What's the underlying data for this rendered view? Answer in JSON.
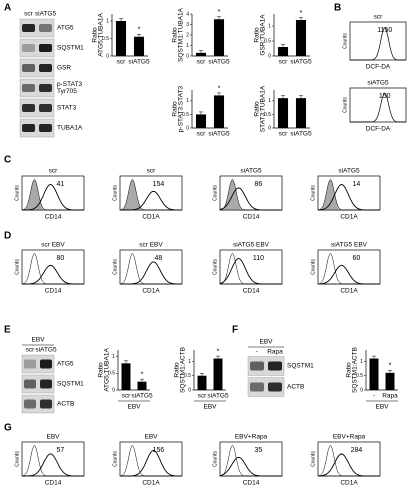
{
  "letters": [
    "A",
    "B",
    "C",
    "D",
    "E",
    "F",
    "G"
  ],
  "blots": [
    {
      "lanes": [
        "scr",
        "siATG5"
      ],
      "rows": [
        "ATG5",
        "SQSTM1",
        "GSR",
        [
          "p-STAT3",
          "Tyr705"
        ],
        "STAT3",
        "TUBA1A"
      ]
    },
    {
      "header": "EBV",
      "lanes": [
        "scr",
        "siATG5"
      ],
      "rows": [
        "ATG5",
        "SQSTM1",
        "ACTB"
      ]
    },
    {
      "header": "EBV",
      "lanes": [
        "-",
        "Rapa"
      ],
      "rows": [
        "SQSTM1",
        "ACTB"
      ]
    }
  ],
  "chart_data": [
    {
      "type": "bar",
      "ylabel": [
        "Ratio",
        "ATG5:TUBA1A"
      ],
      "categories": [
        "scr",
        "siATG5"
      ],
      "values": [
        1.0,
        0.55
      ],
      "color": "#000000",
      "ylim": [
        0,
        1.2
      ],
      "yticks": [
        0,
        0.5,
        1
      ],
      "annotation": "*"
    },
    {
      "type": "bar",
      "ylabel": [
        "Ratio",
        "SQSTM1:TUBA1A"
      ],
      "categories": [
        "scr",
        "siATG5"
      ],
      "values": [
        0.3,
        3.5
      ],
      "color": "#000000",
      "ylim": [
        0,
        4
      ],
      "yticks": [
        0,
        1,
        2,
        3,
        4
      ],
      "annotation": "*"
    },
    {
      "type": "bar",
      "ylabel": [
        "Ratio",
        "GSR:TUBA1A"
      ],
      "categories": [
        "scr",
        "siATG5"
      ],
      "values": [
        0.3,
        1.2
      ],
      "color": "#000000",
      "ylim": [
        0,
        1.4
      ],
      "yticks": [
        0,
        0.5,
        1
      ],
      "annotation": "*"
    },
    {
      "type": "bar",
      "ylabel": [
        "Ratio",
        "p-STAT3:STAT3"
      ],
      "categories": [
        "scr",
        "siATG5"
      ],
      "values": [
        0.5,
        1.2
      ],
      "color": "#000000",
      "ylim": [
        0,
        1.4
      ],
      "yticks": [
        0,
        0.5,
        1
      ],
      "annotation": "*"
    },
    {
      "type": "bar",
      "ylabel": [
        "Ratio",
        "STAT3:TUBA1A"
      ],
      "categories": [
        "scr",
        "siATG5"
      ],
      "values": [
        1.1,
        1.1
      ],
      "color": "#000000",
      "ylim": [
        0,
        1.4
      ],
      "yticks": [
        0,
        0.5,
        1
      ]
    },
    {
      "type": "bar",
      "ylabel": [
        "Ratio",
        "ATG5:TUBA1A"
      ],
      "categories": [
        "scr",
        "siATG5"
      ],
      "values": [
        0.8,
        0.25
      ],
      "color": "#000000",
      "ylim": [
        0,
        1.2
      ],
      "yticks": [
        0,
        0.5,
        1
      ],
      "annotation": "*",
      "group_label": "EBV"
    },
    {
      "type": "bar",
      "ylabel": [
        "Ratio",
        "SQSTM1:ACTB"
      ],
      "categories": [
        "scr",
        "siATG5"
      ],
      "values": [
        0.5,
        1.1
      ],
      "color": "#000000",
      "ylim": [
        0,
        1.4
      ],
      "yticks": [
        0,
        0.5,
        1
      ],
      "annotation": "*",
      "group_label": "EBV"
    },
    {
      "type": "bar",
      "ylabel": [
        "Ratio",
        "SQSTM1:ACTB"
      ],
      "categories": [
        "-",
        "Rapa"
      ],
      "values": [
        1.1,
        0.6
      ],
      "color": "#000000",
      "ylim": [
        0,
        1.4
      ],
      "yticks": [
        0,
        0.5,
        1
      ],
      "annotation": "*",
      "group_label": "EBV"
    }
  ],
  "flows": [
    {
      "label": "scr",
      "number": 1150,
      "xlabel": "DCF-DA",
      "ylabel": "Counts"
    },
    {
      "label": "siATG5",
      "number": 150,
      "xlabel": "DCF-DA",
      "ylabel": "Counts"
    },
    {
      "label": "scr",
      "number": 41,
      "xlabel": "CD14",
      "ylabel": "Counts"
    },
    {
      "label": "scr",
      "number": 154,
      "xlabel": "CD1A",
      "ylabel": "Counts"
    },
    {
      "label": "siATG5",
      "number": 86,
      "xlabel": "CD14",
      "ylabel": "Counts"
    },
    {
      "label": "siATG5",
      "number": 14,
      "xlabel": "CD1A",
      "ylabel": "Counts"
    },
    {
      "label": "scr EBV",
      "number": 80,
      "xlabel": "CD14",
      "ylabel": "Counts"
    },
    {
      "label": "scr EBV",
      "number": 48,
      "xlabel": "CD1A",
      "ylabel": "Counts"
    },
    {
      "label": "siATG5 EBV",
      "number": 110,
      "xlabel": "CD14",
      "ylabel": "Counts"
    },
    {
      "label": "siATG5 EBV",
      "number": 60,
      "xlabel": "CD1A",
      "ylabel": "Counts"
    },
    {
      "label": "EBV",
      "number": 57,
      "xlabel": "CD14",
      "ylabel": "Counts"
    },
    {
      "label": "EBV",
      "number": 156,
      "xlabel": "CD1A",
      "ylabel": "Counts"
    },
    {
      "label": "EBV+Rapa",
      "number": 35,
      "xlabel": "CD14",
      "ylabel": "Counts"
    },
    {
      "label": "EBV+Rapa",
      "number": 284,
      "xlabel": "CD1A",
      "ylabel": "Counts"
    }
  ]
}
